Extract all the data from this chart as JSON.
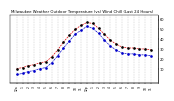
{
  "title": "Milwaukee Weather Outdoor Temperature (vs) Wind Chill (Last 24 Hours)",
  "title_fontsize": 2.8,
  "background_color": "#ffffff",
  "plot_bg_color": "#ffffff",
  "grid_color": "#aaaaaa",
  "temp_color": "#dd0000",
  "windchill_color": "#0000cc",
  "scatter_color": "#000000",
  "hours": [
    0,
    1,
    2,
    3,
    4,
    5,
    6,
    7,
    8,
    9,
    10,
    11,
    12,
    13,
    14,
    15,
    16,
    17,
    18,
    19,
    20,
    21,
    22,
    23
  ],
  "temp": [
    10,
    11,
    13,
    14,
    16,
    17,
    22,
    29,
    37,
    44,
    50,
    54,
    57,
    56,
    51,
    45,
    39,
    35,
    32,
    31,
    31,
    30,
    30,
    29
  ],
  "windchill": [
    4,
    5,
    7,
    8,
    10,
    11,
    16,
    23,
    31,
    38,
    45,
    49,
    53,
    51,
    46,
    39,
    33,
    29,
    26,
    25,
    25,
    24,
    24,
    23
  ],
  "ylim": [
    -5,
    65
  ],
  "ytick_right": [
    10,
    20,
    30,
    40,
    50,
    60
  ],
  "ylabel_fontsize": 2.5,
  "xlabel_fontsize": 2.2,
  "hour_labels": [
    "12a",
    "1",
    "2",
    "3",
    "4",
    "5",
    "6",
    "7",
    "8",
    "9",
    "10",
    "11",
    "12p",
    "1",
    "2",
    "3",
    "4",
    "5",
    "6",
    "7",
    "8",
    "9",
    "10",
    "11"
  ]
}
